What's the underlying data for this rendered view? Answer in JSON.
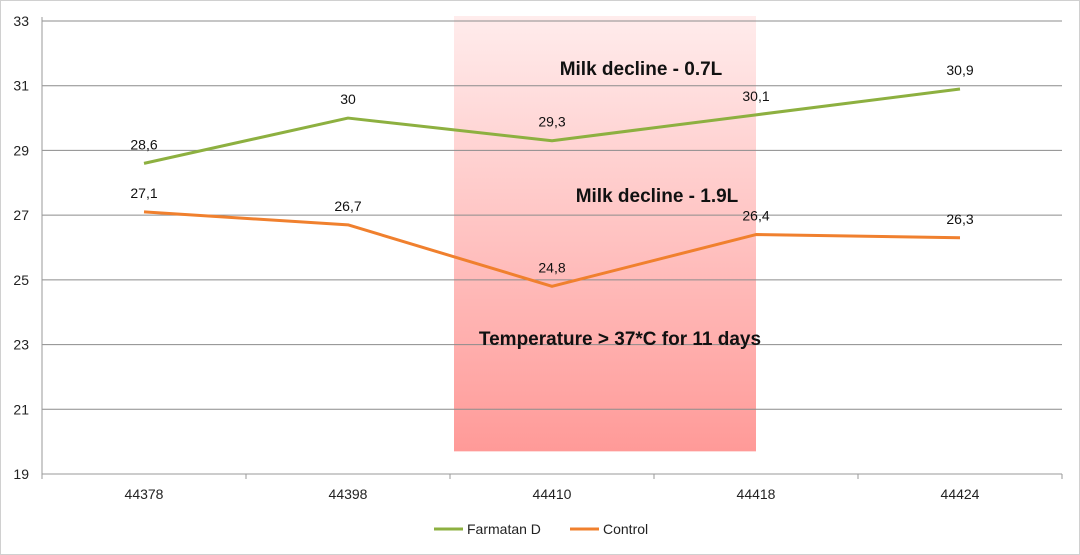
{
  "chart_data": {
    "type": "line",
    "categories": [
      "44378",
      "44398",
      "44410",
      "44418",
      "44424"
    ],
    "series": [
      {
        "name": "Farmatan D",
        "color": "#8DB040",
        "values": [
          28.6,
          30,
          29.3,
          30.1,
          30.9
        ],
        "labels": [
          "28,6",
          "30",
          "29,3",
          "30,1",
          "30,9"
        ]
      },
      {
        "name": "Control",
        "color": "#F0802E",
        "values": [
          27.1,
          26.7,
          24.8,
          26.4,
          26.3
        ],
        "labels": [
          "27,1",
          "26,7",
          "24,8",
          "26,4",
          "26,3"
        ]
      }
    ],
    "yticks": [
      "19",
      "21",
      "23",
      "25",
      "27",
      "29",
      "31",
      "33"
    ],
    "ylim": [
      19,
      33
    ],
    "grid": true,
    "legend_position": "bottom",
    "highlight_band": {
      "from_category": "44410",
      "to_category": "44418",
      "top_color": "#FFECEC",
      "bottom_color": "#FF9A98"
    },
    "annotations": [
      "Milk decline - 0.7L",
      "Milk decline - 1.9L",
      "Temperature > 37*C for 11 days"
    ]
  }
}
